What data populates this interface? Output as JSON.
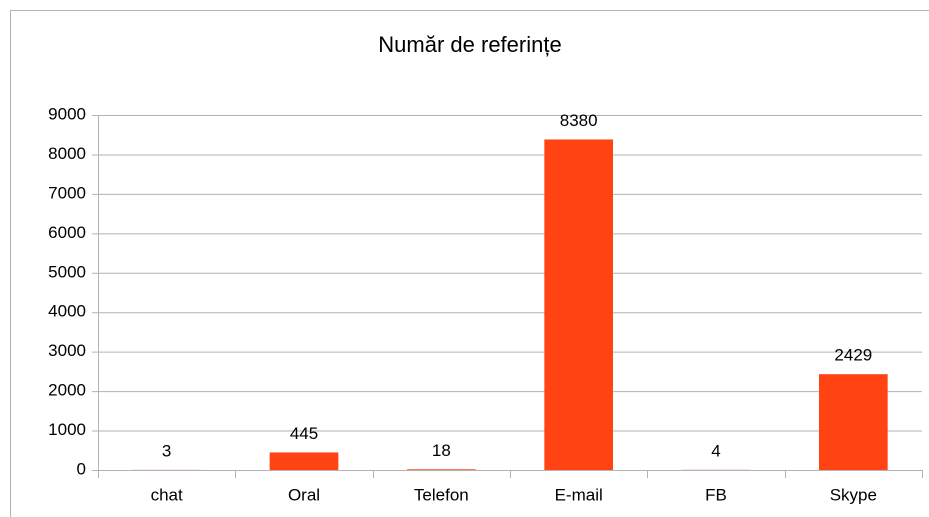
{
  "chart_data": {
    "type": "bar",
    "title": "Număr de referințe",
    "categories": [
      "chat",
      "Oral",
      "Telefon",
      "E-mail",
      "FB",
      "Skype"
    ],
    "values": [
      3,
      445,
      18,
      8380,
      4,
      2429
    ],
    "color": "#ff4313",
    "ylim": [
      0,
      9000
    ],
    "yticks": [
      0,
      1000,
      2000,
      3000,
      4000,
      5000,
      6000,
      7000,
      8000,
      9000
    ],
    "grid": true
  }
}
